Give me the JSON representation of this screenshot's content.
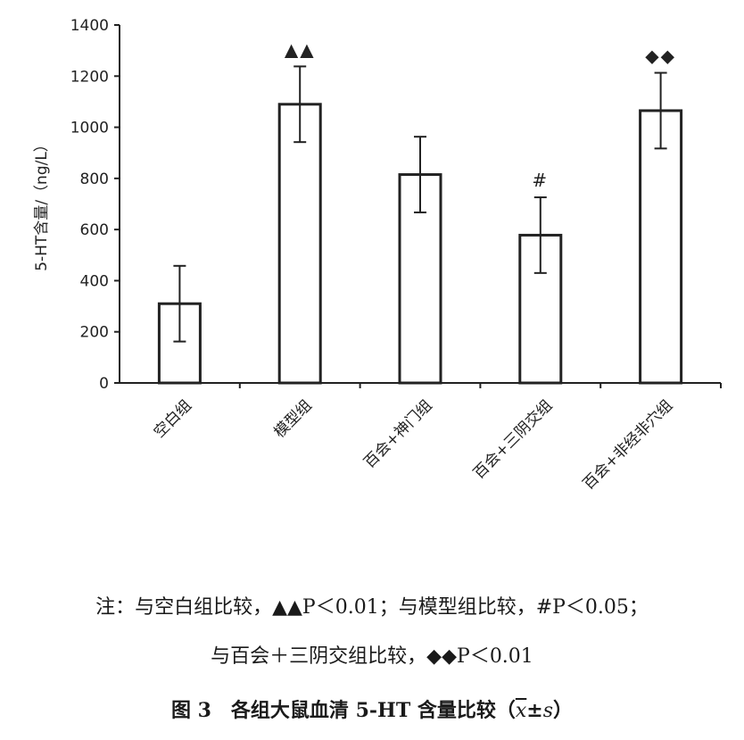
{
  "chart_data": {
    "type": "bar",
    "categories": [
      "空白组",
      "模型组",
      "百会+神门组",
      "百会+三阴交组",
      "百会+非经非穴组"
    ],
    "values": [
      310,
      1090,
      815,
      578,
      1065
    ],
    "errors": [
      148,
      148,
      148,
      148,
      148
    ],
    "markers": [
      "",
      "▲▲",
      "",
      "#",
      "◆◆"
    ],
    "ylabel": "5-HT含量/（ng/L）",
    "ylim": [
      0,
      1400
    ],
    "yticks": [
      0,
      200,
      400,
      600,
      800,
      1000,
      1200,
      1400
    ],
    "grid": false
  },
  "notes": {
    "line1": "注：与空白组比较，▲▲P＜0.01；与模型组比较，#P＜0.05；",
    "line2": "与百会＋三阴交组比较，◆◆P＜0.01"
  },
  "caption": {
    "prefix": "图 3　各组大鼠血清 5-HT 含量比较（",
    "xbar": "x",
    "pm": "±",
    "s": "s",
    "suffix": "）"
  }
}
